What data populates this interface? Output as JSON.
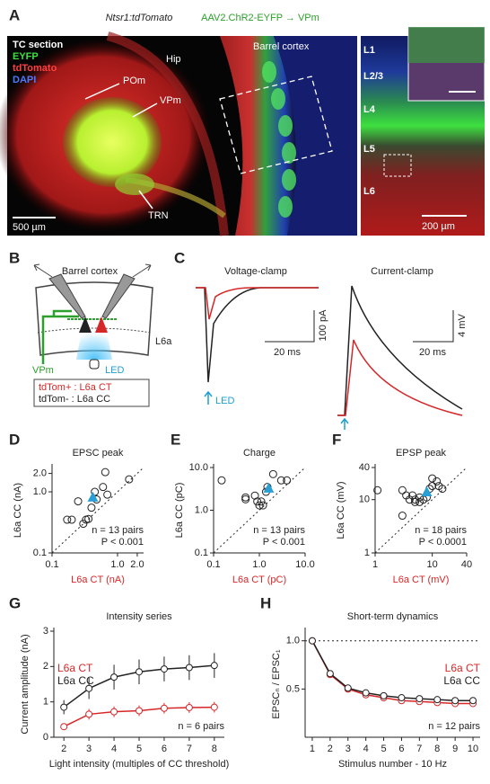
{
  "panel_a": {
    "letter": "A",
    "header_left": "Ntsr1:tdTomato",
    "header_right": "AAV2.ChR2-EYFP → VPm",
    "section": "TC section",
    "eyfp": "EYFP",
    "tdtomato": "tdTomato",
    "dapi": "DAPI",
    "hip": "Hip",
    "pom": "POm",
    "vpm": "VPm",
    "trn": "TRN",
    "barrel": "Barrel cortex",
    "scale_left": "500 µm",
    "layers": [
      "L1",
      "L2/3",
      "L4",
      "L5",
      "L6"
    ],
    "scale_right": "200 µm"
  },
  "panel_b": {
    "letter": "B",
    "title": "Barrel cortex",
    "layer": "L6a",
    "vpm": "VPm",
    "led": "LED",
    "legend_ct": "tdTom+ : L6a CT",
    "legend_cc": "tdTom- : L6a CC"
  },
  "panel_c": {
    "letter": "C",
    "vc_title": "Voltage-clamp",
    "cc_title": "Current-clamp",
    "vc_scale_y": "100 pA",
    "vc_scale_x": "20 ms",
    "cc_scale_y": "4 mV",
    "cc_scale_x": "20 ms",
    "led": "LED"
  },
  "chart_data": [
    {
      "type": "scatter",
      "panel": "D",
      "title": "EPSC peak",
      "xlabel": "L6a CT (nA)",
      "ylabel": "L6a CC (nA)",
      "log": true,
      "unity_line": true,
      "xlabel_color": "#d62728",
      "xlim": [
        0.1,
        2.5
      ],
      "ylim": [
        0.1,
        2.5
      ],
      "xticks": [
        0.1,
        {
          "value": 1,
          "label": "1.0"
        },
        {
          "value": 2,
          "label": "2.0"
        }
      ],
      "yticks": [
        0.1,
        {
          "value": 1,
          "label": "1.0"
        },
        {
          "value": 2,
          "label": "2.0"
        }
      ],
      "points": {
        "color": "#222",
        "x": [
          0.17,
          0.2,
          0.25,
          0.3,
          0.33,
          0.36,
          0.4,
          0.45,
          0.6,
          0.65,
          0.7,
          1.5,
          0.48
        ],
        "y": [
          0.35,
          0.35,
          0.7,
          0.3,
          0.35,
          0.36,
          0.55,
          1.0,
          1.2,
          2.1,
          0.9,
          1.6,
          0.75
        ]
      },
      "mean": {
        "color": "#2a9fd6",
        "x": 0.42,
        "y": 0.82
      },
      "annotations": [
        "n = 13 pairs",
        "P < 0.001"
      ]
    },
    {
      "type": "scatter",
      "panel": "E",
      "title": "Charge",
      "xlabel": "L6a CT (pC)",
      "ylabel": "L6a CC (pC)",
      "log": true,
      "unity_line": true,
      "xlabel_color": "#d62728",
      "xlim": [
        0.1,
        10
      ],
      "ylim": [
        0.1,
        10
      ],
      "xticks": [
        0.1,
        {
          "value": 1,
          "label": "1.0"
        },
        {
          "value": 10,
          "label": "10.0"
        }
      ],
      "yticks": [
        0.1,
        {
          "value": 1,
          "label": "1.0"
        },
        {
          "value": 10,
          "label": "10.0"
        }
      ],
      "points": {
        "color": "#222",
        "x": [
          0.15,
          0.5,
          0.5,
          0.8,
          0.9,
          1.0,
          1.1,
          1.2,
          1.5,
          2.0,
          3.0,
          4.0,
          1.4
        ],
        "y": [
          5,
          2,
          1.8,
          2.2,
          1.6,
          1.3,
          1.6,
          1.3,
          3.5,
          7,
          5,
          5,
          2.7
        ]
      },
      "mean": {
        "color": "#2a9fd6",
        "x": 1.6,
        "y": 3.3
      },
      "annotations": [
        "n = 13 pairs",
        "P < 0.001"
      ]
    },
    {
      "type": "scatter",
      "panel": "F",
      "title": "EPSP peak",
      "xlabel": "L6a CT (mV)",
      "ylabel": "L6a CC (mV)",
      "log": true,
      "unity_line": true,
      "xlabel_color": "#d62728",
      "xlim": [
        1,
        40
      ],
      "ylim": [
        1,
        40
      ],
      "xticks": [
        1,
        10,
        40
      ],
      "yticks": [
        1,
        10,
        40
      ],
      "points": {
        "color": "#222",
        "x": [
          1.1,
          3,
          3.5,
          3,
          4,
          4.5,
          5,
          5,
          6,
          6,
          7,
          8,
          9,
          10,
          12,
          13,
          15,
          10
        ],
        "y": [
          15,
          15,
          12,
          5,
          10,
          12,
          10,
          9,
          9,
          11,
          10,
          11,
          16,
          25,
          22,
          18,
          16,
          18
        ]
      },
      "mean": {
        "color": "#2a9fd6",
        "x": 8,
        "y": 14
      },
      "annotations": [
        "n = 18 pairs",
        "P < 0.0001"
      ]
    },
    {
      "type": "line",
      "panel": "G",
      "title": "Intensity series",
      "xlabel": "Light intensity (multiples of CC threshold)",
      "ylabel": "Current amplitude (nA)",
      "legend": "upper left",
      "xlim": [
        1.6,
        8.4
      ],
      "ylim": [
        0,
        3
      ],
      "xticks": [
        2,
        3,
        4,
        5,
        6,
        7,
        8
      ],
      "yticks": [
        0,
        1,
        2,
        3
      ],
      "x": [
        2,
        3,
        4,
        5,
        6,
        7,
        8
      ],
      "series": [
        {
          "name": "L6a CT",
          "color": "#d62728",
          "values": [
            0.3,
            0.65,
            0.72,
            0.75,
            0.82,
            0.84,
            0.85
          ],
          "errors": [
            0.08,
            0.15,
            0.15,
            0.15,
            0.15,
            0.15,
            0.15
          ]
        },
        {
          "name": "L6a CC",
          "color": "#222222",
          "values": [
            0.85,
            1.38,
            1.7,
            1.85,
            1.93,
            1.97,
            2.03
          ],
          "errors": [
            0.2,
            0.3,
            0.35,
            0.35,
            0.35,
            0.35,
            0.35
          ]
        }
      ],
      "annotations": [
        "n = 6 pairs"
      ]
    },
    {
      "type": "line",
      "panel": "H",
      "title": "Short-term dynamics",
      "xlabel": "Stimulus number - 10 Hz",
      "ylabel": "EPSCₙ / EPSC₁",
      "legend": "upper right",
      "hline": 1,
      "xlim": [
        0.6,
        10.4
      ],
      "ylim": [
        0,
        1.1
      ],
      "xticks": [
        1,
        2,
        3,
        4,
        5,
        6,
        7,
        8,
        9,
        10
      ],
      "yticks": [
        0.5,
        {
          "value": 1,
          "label": "1.0"
        }
      ],
      "x": [
        1,
        2,
        3,
        4,
        5,
        6,
        7,
        8,
        9,
        10
      ],
      "series": [
        {
          "name": "L6a CT",
          "color": "#d62728",
          "values": [
            1,
            0.65,
            0.5,
            0.44,
            0.41,
            0.38,
            0.37,
            0.36,
            0.35,
            0.35
          ]
        },
        {
          "name": "L6a CC",
          "color": "#222222",
          "values": [
            1,
            0.66,
            0.51,
            0.46,
            0.43,
            0.41,
            0.4,
            0.39,
            0.38,
            0.38
          ]
        }
      ],
      "annotations": [
        "n = 12 pairs"
      ]
    }
  ]
}
